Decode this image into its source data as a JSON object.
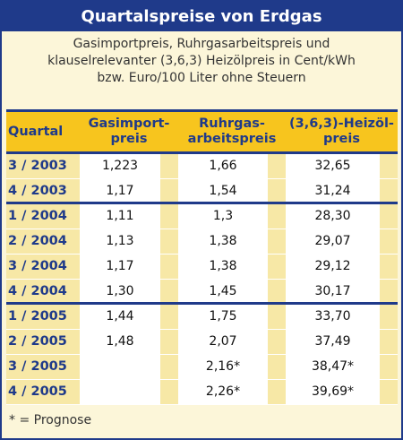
{
  "title": "Quartalspreise von Erdgas",
  "subtitle_lines": [
    "Gasimportpreis, Ruhrgasarbeitspreis und",
    "klauselrelevanter (3,6,3) Heizölpreis in Cent/kWh",
    "bzw. Euro/100 Liter ohne Steuern"
  ],
  "footnote": "* = Prognose",
  "colors": {
    "navy": "#1f3a8a",
    "header_yellow": "#f7c51e",
    "row_yellow": "#f7e8a6",
    "page_cream": "#fcf6d9"
  },
  "chart_data": {
    "type": "table",
    "headers": [
      "Quartal",
      "Gasimport-preis",
      "Ruhrgas-arbeitspreis",
      "(3,6,3)-Heizöl-preis"
    ],
    "header_lines": [
      [
        "Quartal"
      ],
      [
        "Gasimport-",
        "preis"
      ],
      [
        "Ruhrgas-",
        "arbeitspreis"
      ],
      [
        "(3,6,3)-Heizöl-",
        "preis"
      ]
    ],
    "rows": [
      [
        "3 / 2003",
        "1,223",
        "1,66",
        "32,65"
      ],
      [
        "4 / 2003",
        "1,17",
        "1,54",
        "31,24"
      ],
      [
        "1 / 2004",
        "1,11",
        "1,3",
        "28,30"
      ],
      [
        "2 / 2004",
        "1,13",
        "1,38",
        "29,07"
      ],
      [
        "3 / 2004",
        "1,17",
        "1,38",
        "29,12"
      ],
      [
        "4 / 2004",
        "1,30",
        "1,45",
        "30,17"
      ],
      [
        "1 / 2005",
        "1,44",
        "1,75",
        "33,70"
      ],
      [
        "2 / 2005",
        "1,48",
        "2,07",
        "37,49"
      ],
      [
        "3 / 2005",
        "",
        "2,16*",
        "38,47*"
      ],
      [
        "4 / 2005",
        "",
        "2,26*",
        "39,69*"
      ]
    ]
  }
}
